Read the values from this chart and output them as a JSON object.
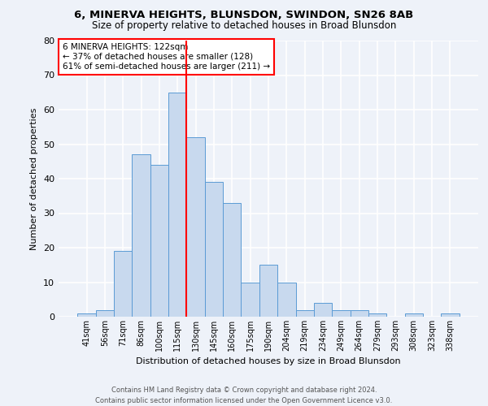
{
  "title1": "6, MINERVA HEIGHTS, BLUNSDON, SWINDON, SN26 8AB",
  "title2": "Size of property relative to detached houses in Broad Blunsdon",
  "xlabel": "Distribution of detached houses by size in Broad Blunsdon",
  "ylabel": "Number of detached properties",
  "categories": [
    "41sqm",
    "56sqm",
    "71sqm",
    "86sqm",
    "100sqm",
    "115sqm",
    "130sqm",
    "145sqm",
    "160sqm",
    "175sqm",
    "190sqm",
    "204sqm",
    "219sqm",
    "234sqm",
    "249sqm",
    "264sqm",
    "279sqm",
    "293sqm",
    "308sqm",
    "323sqm",
    "338sqm"
  ],
  "values": [
    1,
    2,
    19,
    47,
    44,
    65,
    52,
    39,
    33,
    10,
    15,
    10,
    2,
    4,
    2,
    2,
    1,
    0,
    1,
    0,
    1
  ],
  "bar_color": "#c8d9ee",
  "bar_edge_color": "#5b9bd5",
  "bar_width": 1.0,
  "vline_x": 5.5,
  "vline_color": "red",
  "annotation_text": "6 MINERVA HEIGHTS: 122sqm\n← 37% of detached houses are smaller (128)\n61% of semi-detached houses are larger (211) →",
  "annotation_box_color": "white",
  "annotation_box_edge": "red",
  "ylim": [
    0,
    80
  ],
  "yticks": [
    0,
    10,
    20,
    30,
    40,
    50,
    60,
    70,
    80
  ],
  "footer1": "Contains HM Land Registry data © Crown copyright and database right 2024.",
  "footer2": "Contains public sector information licensed under the Open Government Licence v3.0.",
  "bg_color": "#eef2f9",
  "grid_color": "white"
}
